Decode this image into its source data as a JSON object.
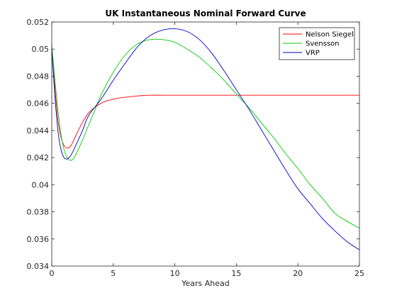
{
  "chart_data": {
    "type": "line",
    "title": "UK Instantaneous Nominal Forward Curve",
    "xlabel": "Years Ahead",
    "ylabel": "",
    "xlim": [
      0,
      25
    ],
    "ylim": [
      0.034,
      0.052
    ],
    "grid": false,
    "legend_position": "top-right",
    "x_ticks": [
      0,
      5,
      10,
      15,
      20,
      25
    ],
    "x_tick_labels": [
      "0",
      "5",
      "10",
      "15",
      "20",
      "25"
    ],
    "y_ticks": [
      0.034,
      0.036,
      0.038,
      0.04,
      0.042,
      0.044,
      0.046,
      0.048,
      0.05,
      0.052
    ],
    "y_tick_labels": [
      "0.034",
      "0.036",
      "0.038",
      "0.04",
      "0.042",
      "0.044",
      "0.046",
      "0.048",
      "0.05",
      "0.052"
    ],
    "series": [
      {
        "name": "Nelson Siegel",
        "color": "#ff0000",
        "x": [
          0,
          0.25,
          0.5,
          0.75,
          1.0,
          1.25,
          1.5,
          1.75,
          2.0,
          2.5,
          3.0,
          3.5,
          4.0,
          4.5,
          5.0,
          5.5,
          6.0,
          7.0,
          8.0,
          10,
          12,
          15,
          18,
          20,
          22,
          25
        ],
        "y": [
          0.05,
          0.0472,
          0.0448,
          0.0435,
          0.0429,
          0.0427,
          0.0428,
          0.0432,
          0.0437,
          0.0446,
          0.0453,
          0.0457,
          0.046,
          0.0462,
          0.0463,
          0.0464,
          0.04645,
          0.04655,
          0.0466,
          0.0466,
          0.0466,
          0.0466,
          0.0466,
          0.0466,
          0.0466,
          0.0466
        ]
      },
      {
        "name": "Svensson",
        "color": "#00cc00",
        "x": [
          0,
          0.25,
          0.5,
          0.75,
          1.0,
          1.25,
          1.5,
          1.75,
          2.0,
          2.5,
          3.0,
          3.5,
          4.0,
          5.0,
          6.0,
          7.0,
          8.0,
          9.0,
          10,
          11,
          12,
          13,
          14,
          15,
          16,
          17,
          18,
          19,
          20,
          21,
          22,
          23,
          24,
          25
        ],
        "y": [
          0.0503,
          0.0478,
          0.0455,
          0.0437,
          0.0426,
          0.042,
          0.0418,
          0.0419,
          0.0423,
          0.0433,
          0.0444,
          0.0455,
          0.0466,
          0.0483,
          0.0496,
          0.0504,
          0.0507,
          0.0507,
          0.0505,
          0.05,
          0.0494,
          0.0486,
          0.0477,
          0.0467,
          0.0457,
          0.0446,
          0.0435,
          0.0423,
          0.0412,
          0.04,
          0.039,
          0.0379,
          0.0373,
          0.0368
        ]
      },
      {
        "name": "VRP",
        "color": "#0000cc",
        "x": [
          0,
          0.25,
          0.5,
          0.75,
          1.0,
          1.25,
          1.5,
          1.75,
          2.0,
          2.5,
          3.0,
          4.0,
          5.0,
          6.0,
          7.0,
          8.0,
          9.0,
          10,
          11,
          12,
          13,
          14,
          15,
          16,
          17,
          18,
          19,
          20,
          21,
          22,
          23,
          24,
          25
        ],
        "y": [
          0.05,
          0.0466,
          0.044,
          0.0426,
          0.042,
          0.0419,
          0.0421,
          0.0425,
          0.043,
          0.044,
          0.0451,
          0.0463,
          0.0477,
          0.049,
          0.0502,
          0.051,
          0.0514,
          0.0515,
          0.0513,
          0.0507,
          0.0497,
          0.0484,
          0.047,
          0.0456,
          0.0441,
          0.0426,
          0.0411,
          0.0397,
          0.0386,
          0.0375,
          0.0366,
          0.0358,
          0.0352
        ]
      }
    ]
  }
}
